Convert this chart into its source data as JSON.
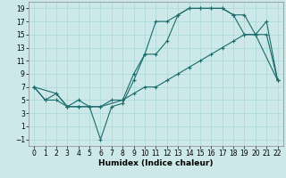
{
  "title": "",
  "xlabel": "Humidex (Indice chaleur)",
  "bg_color": "#cde8e8",
  "line_color": "#1a6b6b",
  "xlim": [
    -0.5,
    22.5
  ],
  "ylim": [
    -2.0,
    20.0
  ],
  "xticks": [
    0,
    1,
    2,
    3,
    4,
    5,
    6,
    7,
    8,
    9,
    10,
    11,
    12,
    13,
    14,
    15,
    16,
    17,
    18,
    19,
    20,
    21,
    22
  ],
  "yticks": [
    -1,
    1,
    3,
    5,
    7,
    9,
    11,
    13,
    15,
    17,
    19
  ],
  "line1_x": [
    0,
    1,
    2,
    3,
    4,
    5,
    6,
    7,
    8,
    9,
    10,
    11,
    12,
    13,
    14,
    15,
    16,
    17,
    18,
    19,
    20,
    21,
    22
  ],
  "line1_y": [
    7,
    5,
    6,
    4,
    4,
    4,
    -1,
    4,
    4.5,
    8,
    12,
    17,
    17,
    18,
    19,
    19,
    19,
    19,
    18,
    15,
    15,
    17,
    8
  ],
  "line2_x": [
    0,
    2,
    3,
    4,
    5,
    6,
    8,
    9,
    10,
    11,
    12,
    13,
    14,
    15,
    16,
    17,
    18,
    19,
    20,
    22
  ],
  "line2_y": [
    7,
    6,
    4,
    5,
    4,
    4,
    5,
    9,
    12,
    12,
    14,
    18,
    19,
    19,
    19,
    19,
    18,
    18,
    15,
    8
  ],
  "line3_x": [
    0,
    1,
    2,
    3,
    4,
    5,
    6,
    7,
    8,
    9,
    10,
    11,
    12,
    13,
    14,
    15,
    16,
    17,
    18,
    19,
    20,
    21,
    22
  ],
  "line3_y": [
    7,
    5,
    5,
    4,
    4,
    4,
    4,
    5,
    5,
    6,
    7,
    7,
    8,
    9,
    10,
    11,
    12,
    13,
    14,
    15,
    15,
    15,
    8
  ],
  "grid_color": "#a8d8d8",
  "xlabel_fontsize": 6.5,
  "tick_fontsize": 5.5
}
